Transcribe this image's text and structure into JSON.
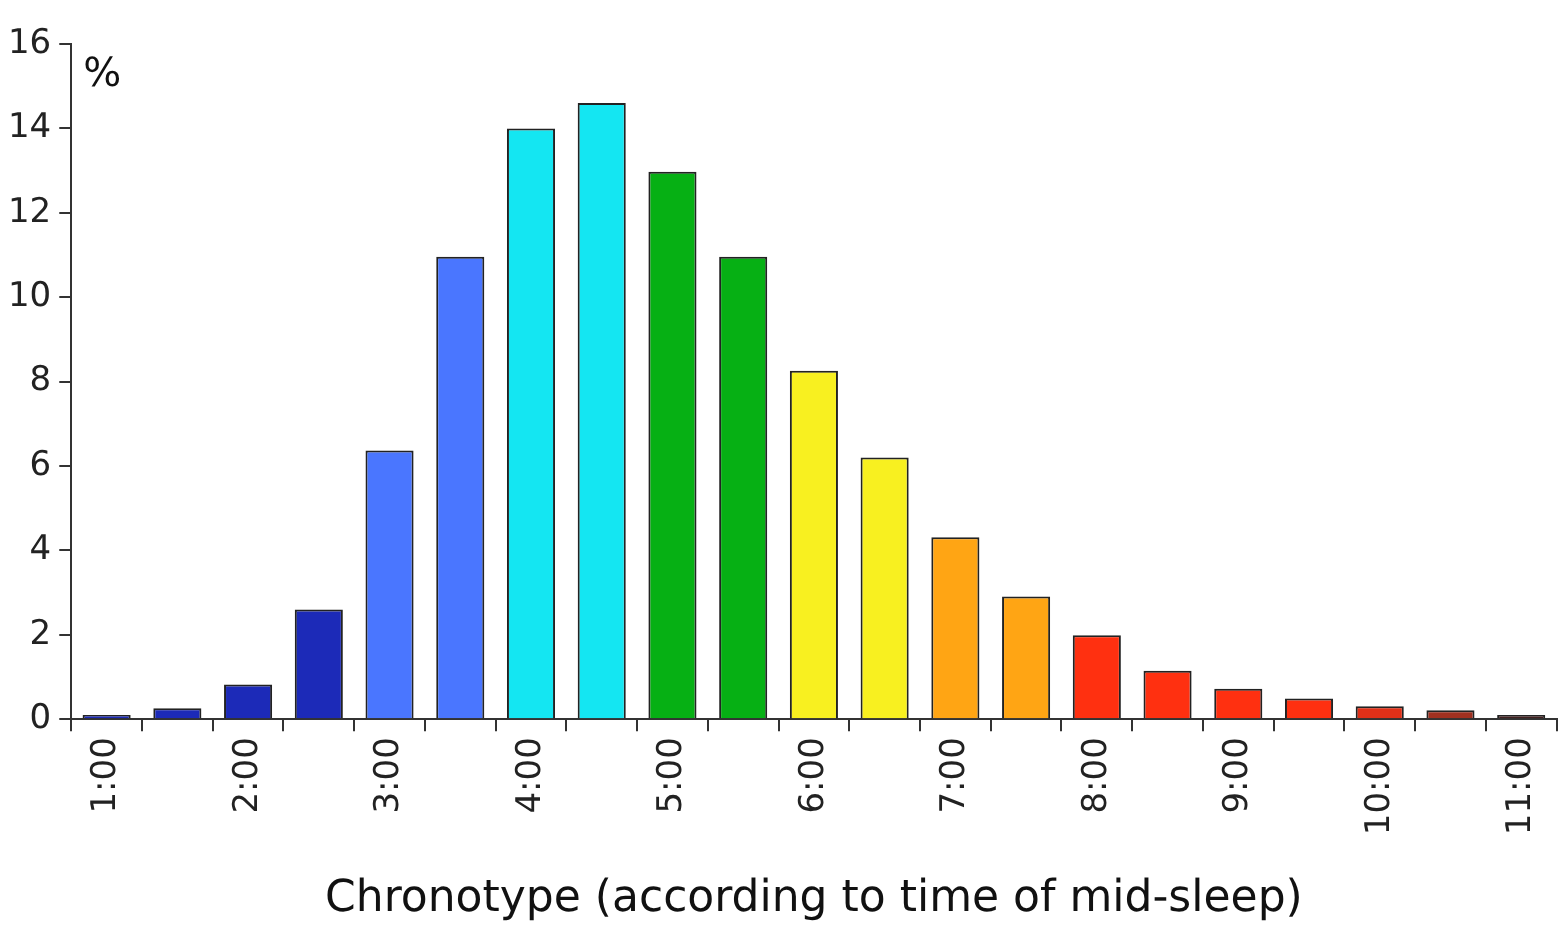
{
  "chart_data": {
    "type": "bar",
    "xlabel": "Chronotype (according to time of mid-sleep)",
    "ylabel": "%",
    "categories": [
      "1:00",
      null,
      "2:00",
      null,
      "3:00",
      null,
      "4:00",
      null,
      "5:00",
      null,
      "6:00",
      null,
      "7:00",
      null,
      "8:00",
      null,
      "9:00",
      null,
      "10:00",
      null,
      "11:00"
    ],
    "values": [
      0.1,
      0.26,
      0.82,
      2.6,
      6.37,
      10.96,
      14.0,
      14.6,
      12.97,
      10.96,
      8.26,
      6.2,
      4.31,
      2.91,
      1.99,
      1.15,
      0.72,
      0.49,
      0.31,
      0.21,
      0.1
    ],
    "colors": [
      "#1c2ab8",
      "#1c2ab8",
      "#1c2ab8",
      "#1c2ab8",
      "#4a76ff",
      "#4a76ff",
      "#14e6f2",
      "#14e6f2",
      "#06b014",
      "#06b014",
      "#f8f020",
      "#f8f020",
      "#ffa514",
      "#ffa514",
      "#ff3010",
      "#ff3010",
      "#ff3010",
      "#ff3010",
      "#e03018",
      "#a03020",
      "#402020"
    ],
    "ylim": [
      0,
      16
    ],
    "yticks": [
      0,
      2,
      4,
      6,
      8,
      10,
      12,
      14,
      16
    ],
    "grid": false,
    "legend": false
  }
}
